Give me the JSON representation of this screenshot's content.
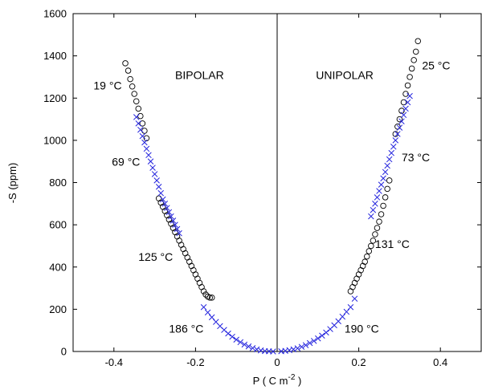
{
  "chart_data": {
    "type": "scatter",
    "xlabel": "P ( C m",
    "xlabel_sup": "-2",
    "xlabel_end": " )",
    "ylabel": "-S (ppm)",
    "xlim": [
      -0.5,
      0.5
    ],
    "ylim": [
      0,
      1600
    ],
    "xticks": [
      -0.4,
      -0.2,
      0,
      0.2,
      0.4
    ],
    "xtick_labels": [
      "-0.4",
      "-0.2",
      "0",
      "0.2",
      "0.4"
    ],
    "yticks": [
      0,
      200,
      400,
      600,
      800,
      1000,
      1200,
      1400,
      1600
    ],
    "ytick_labels": [
      "0",
      "200",
      "400",
      "600",
      "800",
      "1000",
      "1200",
      "1400",
      "1600"
    ],
    "grid": false,
    "zero_line": true,
    "series": [
      {
        "marker": "circle",
        "color": "#000000",
        "segments": [
          {
            "x": [
              -0.372,
              -0.365,
              -0.36,
              -0.355,
              -0.35,
              -0.345,
              -0.34,
              -0.335,
              -0.33,
              -0.325,
              -0.32
            ],
            "y": [
              1365,
              1330,
              1290,
              1255,
              1220,
              1185,
              1150,
              1115,
              1080,
              1045,
              1010
            ]
          },
          {
            "x": [
              -0.29,
              -0.285,
              -0.28,
              -0.275,
              -0.27,
              -0.265,
              -0.26,
              -0.255,
              -0.25,
              -0.245,
              -0.24,
              -0.235,
              -0.23,
              -0.225,
              -0.22,
              -0.215,
              -0.21,
              -0.205,
              -0.2,
              -0.195,
              -0.19,
              -0.185,
              -0.18,
              -0.175,
              -0.17,
              -0.165,
              -0.16
            ],
            "y": [
              725,
              705,
              685,
              665,
              645,
              625,
              605,
              585,
              565,
              545,
              525,
              505,
              485,
              465,
              445,
              425,
              405,
              385,
              365,
              345,
              325,
              305,
              285,
              270,
              260,
              255,
              255
            ]
          },
          {
            "x": [
              0.18,
              0.185,
              0.19,
              0.195,
              0.2,
              0.205,
              0.21,
              0.215,
              0.22,
              0.225,
              0.23,
              0.235,
              0.24,
              0.245,
              0.25,
              0.255,
              0.26,
              0.265,
              0.27,
              0.275
            ],
            "y": [
              285,
              305,
              325,
              345,
              365,
              385,
              405,
              425,
              450,
              475,
              500,
              525,
              555,
              585,
              615,
              650,
              690,
              730,
              770,
              810
            ]
          },
          {
            "x": [
              0.29,
              0.295,
              0.3,
              0.305,
              0.31,
              0.315,
              0.32,
              0.325,
              0.33,
              0.335,
              0.34,
              0.345
            ],
            "y": [
              1030,
              1065,
              1100,
              1140,
              1180,
              1220,
              1260,
              1300,
              1340,
              1380,
              1420,
              1470
            ]
          }
        ]
      },
      {
        "marker": "cross",
        "color": "#2222dd",
        "segments": [
          {
            "x": [
              -0.345,
              -0.34,
              -0.335,
              -0.33,
              -0.325,
              -0.32,
              -0.315,
              -0.31,
              -0.305,
              -0.3,
              -0.295,
              -0.29,
              -0.285,
              -0.28,
              -0.275,
              -0.27,
              -0.265,
              -0.26,
              -0.255,
              -0.25,
              -0.245,
              -0.24
            ],
            "y": [
              1110,
              1080,
              1050,
              1020,
              990,
              960,
              930,
              900,
              870,
              840,
              810,
              780,
              750,
              720,
              700,
              680,
              660,
              640,
              620,
              600,
              580,
              560
            ]
          },
          {
            "x": [
              -0.18,
              -0.17,
              -0.16,
              -0.15,
              -0.14,
              -0.13,
              -0.12,
              -0.11,
              -0.1,
              -0.09,
              -0.08,
              -0.07,
              -0.06,
              -0.05,
              -0.04,
              -0.03,
              -0.02,
              -0.01
            ],
            "y": [
              210,
              185,
              162,
              140,
              120,
              102,
              85,
              70,
              56,
              44,
              33,
              24,
              16,
              10,
              5,
              2,
              1,
              0
            ]
          },
          {
            "x": [
              0.01,
              0.02,
              0.03,
              0.04,
              0.05,
              0.06,
              0.07,
              0.08,
              0.09,
              0.1,
              0.11,
              0.12,
              0.13,
              0.14,
              0.15,
              0.16,
              0.17,
              0.18,
              0.19
            ],
            "y": [
              1,
              3,
              6,
              10,
              15,
              22,
              30,
              40,
              50,
              62,
              75,
              90,
              106,
              124,
              143,
              165,
              188,
              210,
              250
            ]
          },
          {
            "x": [
              0.23,
              0.235,
              0.24,
              0.245,
              0.25,
              0.255,
              0.26,
              0.265,
              0.27,
              0.275,
              0.28,
              0.285,
              0.29,
              0.295,
              0.3,
              0.305,
              0.31,
              0.315,
              0.32,
              0.325
            ],
            "y": [
              640,
              670,
              700,
              730,
              760,
              790,
              820,
              850,
              880,
              910,
              940,
              970,
              1000,
              1030,
              1060,
              1090,
              1120,
              1150,
              1180,
              1210
            ]
          }
        ]
      }
    ],
    "annotations": [
      {
        "text": "19 °C",
        "x": -0.45,
        "y": 1240,
        "type": "annot"
      },
      {
        "text": "69 °C",
        "x": -0.405,
        "y": 880,
        "type": "annot"
      },
      {
        "text": "125 °C",
        "x": -0.34,
        "y": 430,
        "type": "annot"
      },
      {
        "text": "186 °C",
        "x": -0.265,
        "y": 90,
        "type": "annot"
      },
      {
        "text": "BIPOLAR",
        "x": -0.25,
        "y": 1290,
        "type": "region"
      },
      {
        "text": "UNIPOLAR",
        "x": 0.095,
        "y": 1290,
        "type": "region"
      },
      {
        "text": "25 °C",
        "x": 0.355,
        "y": 1335,
        "type": "annot"
      },
      {
        "text": "73 °C",
        "x": 0.305,
        "y": 900,
        "type": "annot"
      },
      {
        "text": "131 °C",
        "x": 0.24,
        "y": 490,
        "type": "annot"
      },
      {
        "text": "190 °C",
        "x": 0.165,
        "y": 90,
        "type": "annot"
      }
    ]
  }
}
